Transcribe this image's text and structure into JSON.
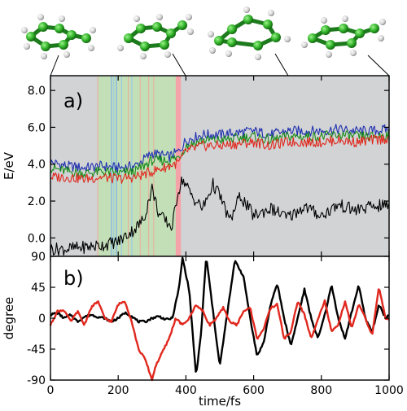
{
  "chart_data": [
    {
      "type": "line",
      "panel_label": "a)",
      "ylabel": "E/eV",
      "xlim": [
        0,
        1000
      ],
      "ylim": [
        -1.0,
        8.8
      ],
      "y_ticks": [
        0.0,
        2.0,
        4.0,
        6.0,
        8.0
      ],
      "y_tick_labels": [
        "0.0",
        "2.0",
        "4.0",
        "6.0",
        "8.0"
      ],
      "background": "#d1d3d4",
      "shaded_regions": [
        {
          "from": 140,
          "to": 370,
          "color": "#c3dfb8"
        },
        {
          "from": 370,
          "to": 385,
          "color": "#f4a3a8"
        }
      ],
      "hop_lines": [
        {
          "x": 140,
          "color": "#e6b3a0"
        },
        {
          "x": 180,
          "color": "#7fb1e8"
        },
        {
          "x": 187,
          "color": "#9bcbe3"
        },
        {
          "x": 195,
          "color": "#7fb1e8"
        },
        {
          "x": 210,
          "color": "#9bcbe3"
        },
        {
          "x": 230,
          "color": "#e6b3a0"
        },
        {
          "x": 240,
          "color": "#9bcbe3"
        },
        {
          "x": 265,
          "color": "#e6b3a0"
        },
        {
          "x": 290,
          "color": "#e6b3a0"
        },
        {
          "x": 305,
          "color": "#e6b3a0"
        }
      ],
      "series": [
        {
          "color": "#1f2fb0",
          "x": [
            0,
            50,
            100,
            150,
            200,
            250,
            300,
            350,
            380,
            400,
            450,
            500,
            550,
            600,
            650,
            700,
            750,
            800,
            850,
            900,
            950,
            1000
          ],
          "y": [
            4.1,
            3.9,
            3.8,
            3.9,
            3.8,
            3.9,
            4.6,
            4.4,
            4.7,
            5.3,
            5.6,
            5.6,
            5.7,
            5.8,
            5.6,
            5.8,
            5.8,
            5.8,
            5.9,
            5.8,
            5.8,
            5.9
          ]
        },
        {
          "color": "#1a8c1a",
          "x": [
            0,
            50,
            100,
            150,
            200,
            250,
            300,
            350,
            380,
            400,
            450,
            500,
            550,
            600,
            650,
            700,
            750,
            800,
            850,
            900,
            950,
            1000
          ],
          "y": [
            3.8,
            3.6,
            3.5,
            3.6,
            3.5,
            3.6,
            4.2,
            4.2,
            4.4,
            5.0,
            5.3,
            5.3,
            5.4,
            5.5,
            5.3,
            5.5,
            5.5,
            5.5,
            5.6,
            5.5,
            5.5,
            5.6
          ]
        },
        {
          "color": "#e0281e",
          "x": [
            0,
            50,
            100,
            150,
            200,
            250,
            300,
            350,
            380,
            400,
            450,
            500,
            550,
            600,
            650,
            700,
            750,
            800,
            850,
            900,
            950,
            1000
          ],
          "y": [
            3.3,
            3.3,
            3.2,
            3.3,
            3.2,
            3.3,
            3.6,
            3.9,
            4.1,
            4.7,
            5.0,
            5.0,
            5.1,
            5.2,
            5.0,
            5.2,
            5.2,
            5.2,
            5.3,
            5.2,
            5.3,
            5.4
          ]
        },
        {
          "color": "#000000",
          "x": [
            0,
            50,
            100,
            150,
            200,
            250,
            275,
            300,
            320,
            340,
            360,
            375,
            390,
            420,
            450,
            480,
            500,
            530,
            560,
            600,
            650,
            700,
            750,
            800,
            850,
            900,
            950,
            1000
          ],
          "y": [
            -0.6,
            -0.6,
            -0.5,
            -0.4,
            -0.2,
            0.5,
            1.0,
            2.7,
            1.3,
            0.9,
            0.6,
            2.4,
            3.2,
            2.2,
            1.6,
            2.9,
            2.3,
            0.9,
            2.3,
            1.2,
            1.6,
            1.1,
            1.7,
            1.2,
            1.8,
            1.5,
            1.7,
            1.8
          ]
        }
      ]
    },
    {
      "type": "line",
      "panel_label": "b)",
      "ylabel": "degree",
      "xlabel": "time/fs",
      "xlim": [
        0,
        1000
      ],
      "ylim": [
        -90,
        90
      ],
      "y_ticks": [
        -90,
        -45,
        0,
        45,
        90
      ],
      "y_tick_labels": [
        "-90",
        "-45",
        "0",
        "45",
        "90"
      ],
      "x_ticks": [
        0,
        200,
        400,
        600,
        800,
        1000
      ],
      "x_tick_labels": [
        "0",
        "200",
        "400",
        "600",
        "800",
        "1000"
      ],
      "series": [
        {
          "color": "#000000",
          "x": [
            0,
            20,
            40,
            60,
            80,
            100,
            120,
            140,
            160,
            180,
            200,
            220,
            240,
            260,
            280,
            300,
            320,
            340,
            360,
            380,
            390,
            410,
            430,
            445,
            460,
            480,
            500,
            520,
            545,
            570,
            590,
            610,
            630,
            650,
            670,
            690,
            710,
            730,
            750,
            770,
            790,
            810,
            830,
            850,
            870,
            890,
            910,
            930,
            950,
            970,
            990,
            1000
          ],
          "y": [
            5,
            8,
            0,
            5,
            -5,
            2,
            5,
            2,
            0,
            -5,
            0,
            8,
            3,
            -5,
            -5,
            0,
            3,
            -2,
            0,
            45,
            88,
            40,
            -85,
            -20,
            90,
            10,
            -70,
            0,
            85,
            60,
            0,
            -55,
            -35,
            20,
            50,
            0,
            -40,
            0,
            42,
            0,
            -30,
            5,
            48,
            0,
            -30,
            10,
            48,
            0,
            -20,
            20,
            0,
            5
          ]
        },
        {
          "color": "#e0281e",
          "x": [
            0,
            20,
            40,
            60,
            80,
            100,
            120,
            140,
            160,
            180,
            200,
            220,
            240,
            260,
            280,
            300,
            310,
            330,
            350,
            370,
            390,
            410,
            430,
            450,
            470,
            490,
            510,
            530,
            550,
            570,
            590,
            610,
            630,
            650,
            670,
            690,
            710,
            730,
            750,
            770,
            790,
            810,
            830,
            850,
            870,
            890,
            910,
            930,
            950,
            970,
            990,
            1000
          ],
          "y": [
            -10,
            10,
            12,
            -5,
            10,
            -10,
            15,
            25,
            0,
            -5,
            20,
            25,
            -5,
            -45,
            -60,
            -90,
            -70,
            -50,
            -30,
            0,
            -10,
            0,
            20,
            10,
            -10,
            0,
            15,
            -5,
            -10,
            10,
            15,
            -30,
            -15,
            15,
            20,
            -30,
            -20,
            25,
            5,
            -30,
            0,
            25,
            -20,
            -10,
            25,
            -15,
            20,
            0,
            -25,
            45,
            0,
            0
          ]
        }
      ]
    }
  ]
}
